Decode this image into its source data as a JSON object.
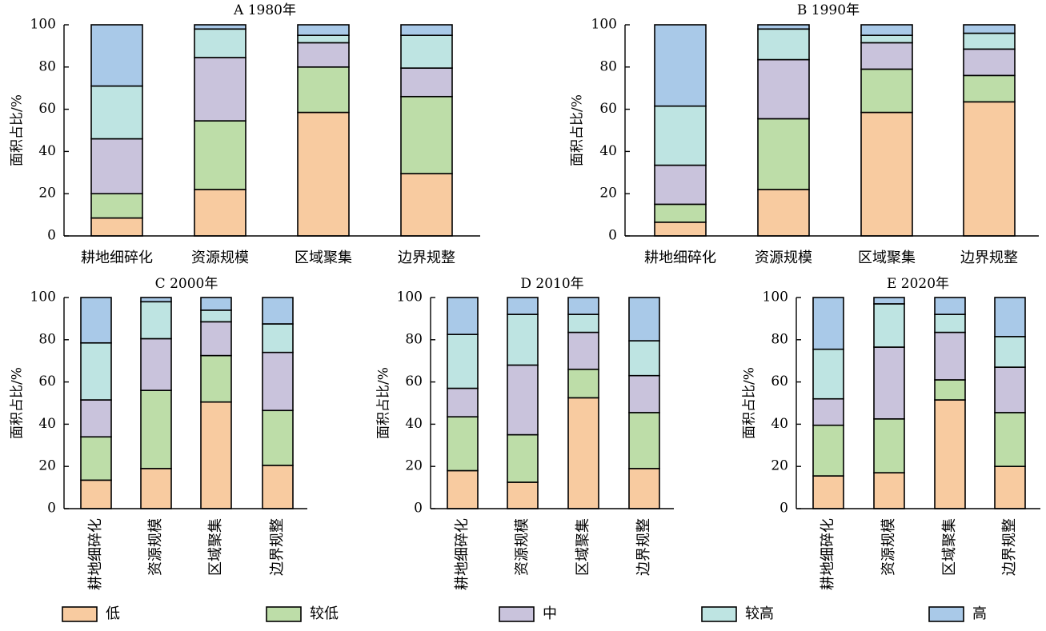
{
  "chart_data": [
    {
      "type": "bar",
      "stacked": true,
      "title": "A 1980年",
      "ylabel": "面积占比/%",
      "ylim": [
        0,
        100
      ],
      "yticks": [
        0,
        20,
        40,
        60,
        80,
        100
      ],
      "categories": [
        "耕地细碎化",
        "资源规模",
        "区域聚集",
        "边界规整"
      ],
      "series": [
        {
          "name": "低",
          "values": [
            8.5,
            22,
            58.5,
            29.5
          ]
        },
        {
          "name": "较低",
          "values": [
            11.5,
            32.5,
            21.5,
            36.5
          ]
        },
        {
          "name": "中",
          "values": [
            26,
            30,
            11.5,
            13.5
          ]
        },
        {
          "name": "较高",
          "values": [
            25,
            13.5,
            3.5,
            15.5
          ]
        },
        {
          "name": "高",
          "values": [
            29,
            2,
            5,
            5
          ]
        }
      ]
    },
    {
      "type": "bar",
      "stacked": true,
      "title": "B 1990年",
      "ylabel": "面积占比/%",
      "ylim": [
        0,
        100
      ],
      "yticks": [
        0,
        20,
        40,
        60,
        80,
        100
      ],
      "categories": [
        "耕地细碎化",
        "资源规模",
        "区域聚集",
        "边界规整"
      ],
      "series": [
        {
          "name": "低",
          "values": [
            6.5,
            22,
            58.5,
            63.5
          ]
        },
        {
          "name": "较低",
          "values": [
            8.5,
            33.5,
            20.5,
            12.5
          ]
        },
        {
          "name": "中",
          "values": [
            18.5,
            28,
            12.5,
            12.5
          ]
        },
        {
          "name": "较高",
          "values": [
            28,
            14.5,
            3.5,
            7.5
          ]
        },
        {
          "name": "高",
          "values": [
            38.5,
            2,
            5,
            4
          ]
        }
      ]
    },
    {
      "type": "bar",
      "stacked": true,
      "title": "C 2000年",
      "ylabel": "面积占比/%",
      "ylim": [
        0,
        100
      ],
      "yticks": [
        0,
        20,
        40,
        60,
        80,
        100
      ],
      "categories": [
        "耕地细碎化",
        "资源规模",
        "区域聚集",
        "边界规整"
      ],
      "series": [
        {
          "name": "低",
          "values": [
            13.5,
            19,
            50.5,
            20.5
          ]
        },
        {
          "name": "较低",
          "values": [
            20.5,
            37,
            22,
            26
          ]
        },
        {
          "name": "中",
          "values": [
            17.5,
            24.5,
            16,
            27.5
          ]
        },
        {
          "name": "较高",
          "values": [
            27,
            17.5,
            5.5,
            13.5
          ]
        },
        {
          "name": "高",
          "values": [
            21.5,
            2,
            6,
            12.5
          ]
        }
      ]
    },
    {
      "type": "bar",
      "stacked": true,
      "title": "D 2010年",
      "ylabel": "面积占比/%",
      "ylim": [
        0,
        100
      ],
      "yticks": [
        0,
        20,
        40,
        60,
        80,
        100
      ],
      "categories": [
        "耕地细碎化",
        "资源规模",
        "区域聚集",
        "边界规整"
      ],
      "series": [
        {
          "name": "低",
          "values": [
            18,
            12.5,
            52.5,
            19
          ]
        },
        {
          "name": "较低",
          "values": [
            25.5,
            22.5,
            13.5,
            26.5
          ]
        },
        {
          "name": "中",
          "values": [
            13.5,
            33,
            17.5,
            17.5
          ]
        },
        {
          "name": "较高",
          "values": [
            25.5,
            24,
            8.5,
            16.5
          ]
        },
        {
          "name": "高",
          "values": [
            17.5,
            8,
            8,
            20.5
          ]
        }
      ]
    },
    {
      "type": "bar",
      "stacked": true,
      "title": "E 2020年",
      "ylabel": "面积占比/%",
      "ylim": [
        0,
        100
      ],
      "yticks": [
        0,
        20,
        40,
        60,
        80,
        100
      ],
      "categories": [
        "耕地细碎化",
        "资源规模",
        "区域聚集",
        "边界规整"
      ],
      "series": [
        {
          "name": "低",
          "values": [
            15.5,
            17,
            51.5,
            20
          ]
        },
        {
          "name": "较低",
          "values": [
            24,
            25.5,
            9.5,
            25.5
          ]
        },
        {
          "name": "中",
          "values": [
            12.5,
            34,
            22.5,
            21.5
          ]
        },
        {
          "name": "较高",
          "values": [
            23.5,
            20.5,
            8.5,
            14.5
          ]
        },
        {
          "name": "高",
          "values": [
            24.5,
            3,
            8,
            18.5
          ]
        }
      ]
    }
  ],
  "legend": {
    "placement": "bottom",
    "items": [
      {
        "label": "低",
        "color": "#F8CBA0"
      },
      {
        "label": "较低",
        "color": "#BDDDA8"
      },
      {
        "label": "中",
        "color": "#C9C3DC"
      },
      {
        "label": "较高",
        "color": "#BEE4E2"
      },
      {
        "label": "高",
        "color": "#A9C9E8"
      }
    ]
  },
  "colors": {
    "axis": "#000000",
    "outline": "#000000",
    "background": "#FFFFFF"
  }
}
